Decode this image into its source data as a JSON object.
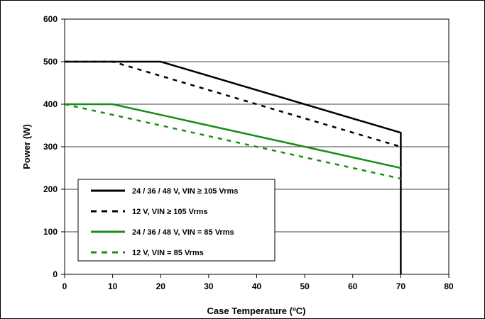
{
  "chart_data": {
    "type": "line",
    "xlabel": "Case Temperature (ºC)",
    "ylabel": "Power (W)",
    "xlim": [
      0,
      80
    ],
    "ylim": [
      0,
      600
    ],
    "x_ticks": [
      0,
      10,
      20,
      30,
      40,
      50,
      60,
      70,
      80
    ],
    "y_ticks": [
      0,
      100,
      200,
      300,
      400,
      500,
      600
    ],
    "grid": "horizontal",
    "legend_position": "bottom-left",
    "colors": {
      "black": "#000000",
      "green": "#1a8c1a"
    },
    "series": [
      {
        "name": "24 / 36 / 48 V, VIN ≥ 105 Vrms",
        "color": "#000000",
        "dashed": false,
        "points": [
          [
            0,
            500
          ],
          [
            20,
            500
          ],
          [
            70,
            333
          ],
          [
            70,
            0
          ]
        ]
      },
      {
        "name": "12 V, VIN ≥ 105 Vrms",
        "color": "#000000",
        "dashed": true,
        "points": [
          [
            0,
            500
          ],
          [
            10,
            500
          ],
          [
            70,
            300
          ]
        ]
      },
      {
        "name": "24 / 36 / 48 V, VIN = 85 Vrms",
        "color": "#1a8c1a",
        "dashed": false,
        "points": [
          [
            0,
            400
          ],
          [
            10,
            400
          ],
          [
            70,
            250
          ]
        ]
      },
      {
        "name": "12 V, VIN = 85 Vrms",
        "color": "#1a8c1a",
        "dashed": true,
        "points": [
          [
            0,
            400
          ],
          [
            70,
            225
          ]
        ]
      }
    ]
  }
}
